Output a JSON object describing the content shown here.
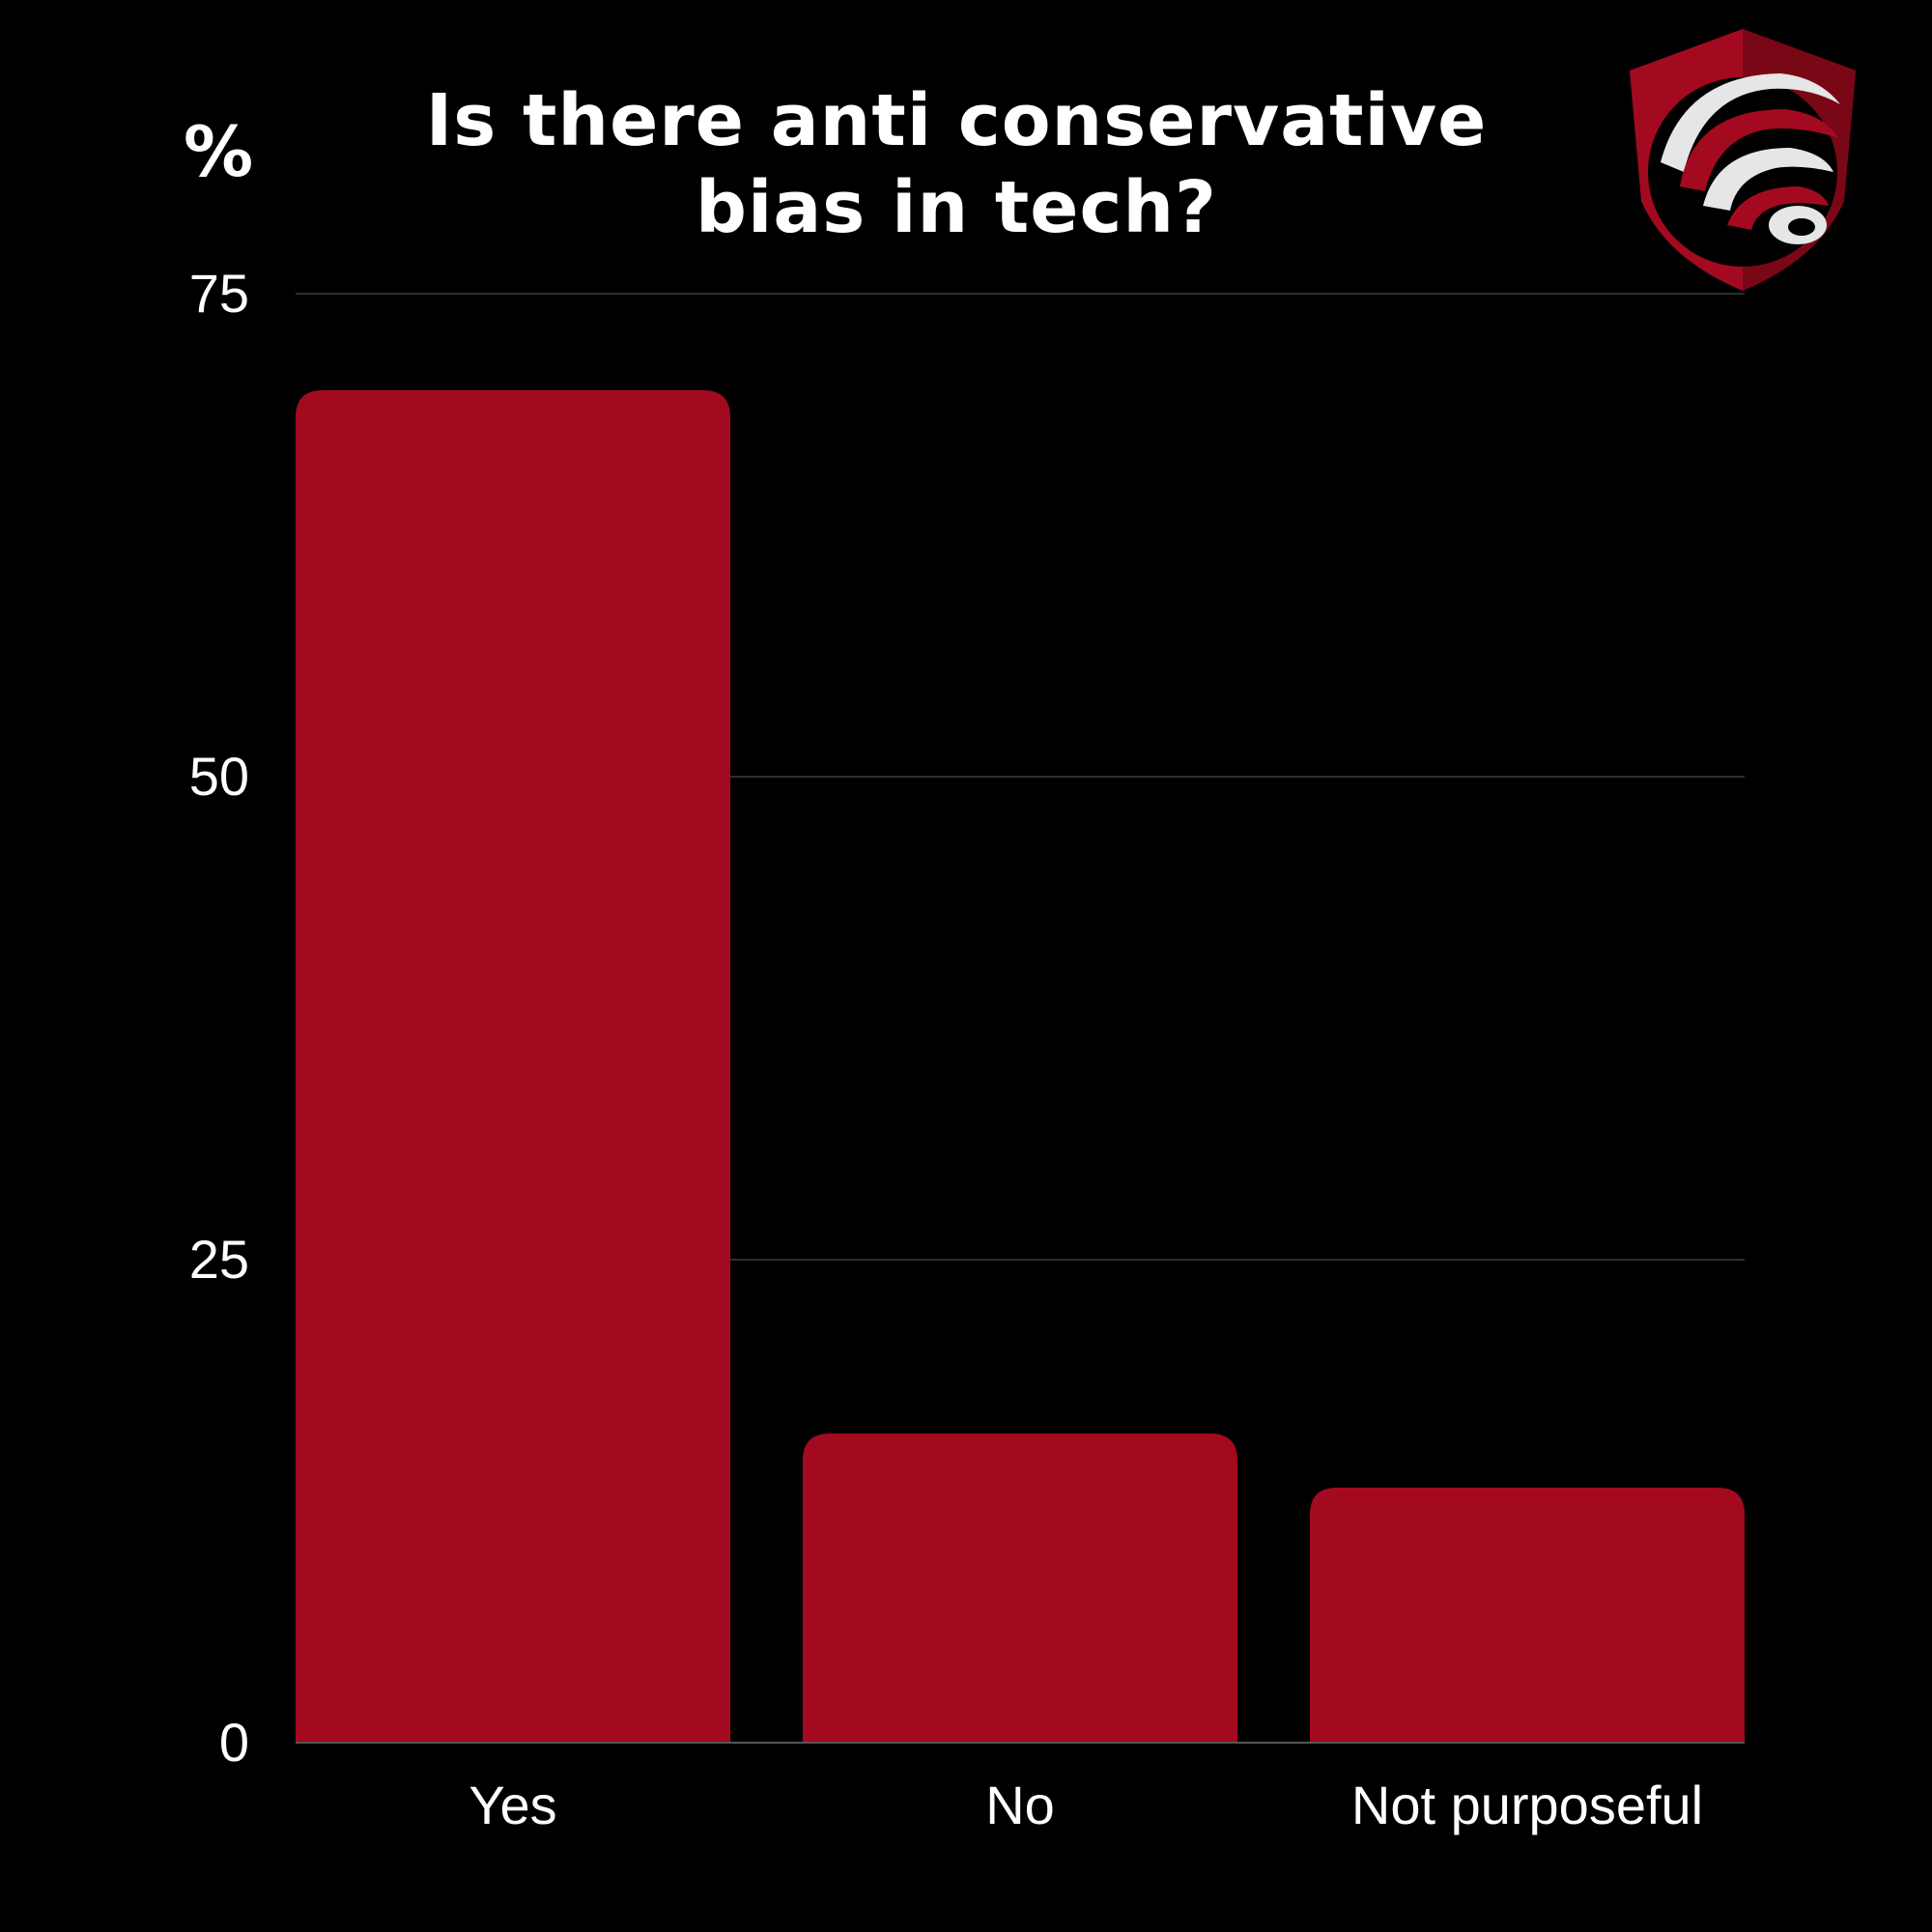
{
  "chart_data": {
    "type": "bar",
    "title_lines": [
      "Is there anti conservative",
      "bias in tech?"
    ],
    "ylabel": "%",
    "xlabel": "",
    "categories": [
      "Yes",
      "No",
      "Not purposeful"
    ],
    "values": [
      70,
      16,
      13.2
    ],
    "ylim": [
      0,
      75
    ],
    "yticks": [
      "0",
      "25",
      "50",
      "75"
    ],
    "grid": true,
    "legend": "none"
  },
  "colors": {
    "background": "#000000",
    "bar": "#a30a20",
    "text": "#ffffff",
    "grid": "#2e2e2e",
    "baseline": "#555555"
  },
  "logo": {
    "icon": "shield-globe-logo-icon"
  }
}
